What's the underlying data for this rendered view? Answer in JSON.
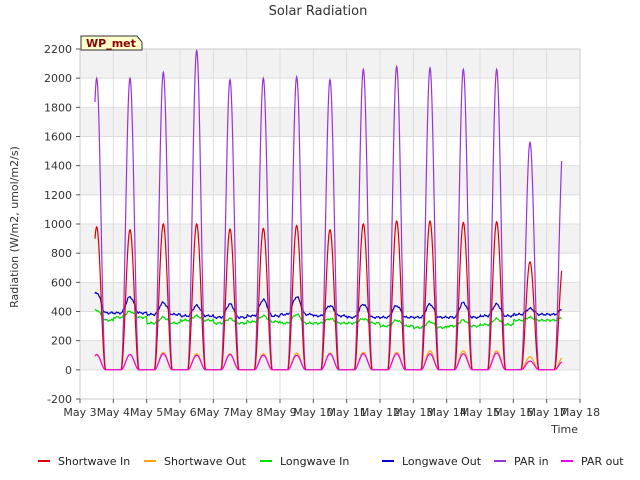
{
  "chart_data": {
    "type": "line",
    "title": "Solar Radiation",
    "xlabel": "Time",
    "ylabel": "Radiation (W/m2, umol/m2/s)",
    "station_badge": "WP_met",
    "ylim": [
      -200,
      2200
    ],
    "yticks": [
      -200,
      0,
      200,
      400,
      600,
      800,
      1000,
      1200,
      1400,
      1600,
      1800,
      2000,
      2200
    ],
    "xlim": [
      3,
      18
    ],
    "xticks": [
      3,
      4,
      5,
      6,
      7,
      8,
      9,
      10,
      11,
      12,
      13,
      14,
      15,
      16,
      17,
      18
    ],
    "xtick_labels": [
      "May 3",
      "May 4",
      "May 5",
      "May 6",
      "May 7",
      "May 8",
      "May 9",
      "May 10",
      "May 11",
      "May 12",
      "May 13",
      "May 14",
      "May 15",
      "May 16",
      "May 17",
      "May 18"
    ],
    "days": [
      3.5,
      4.5,
      5.5,
      6.5,
      7.5,
      8.5,
      9.5,
      10.5,
      11.5,
      12.5,
      13.5,
      14.5,
      15.5,
      16.5,
      17.5
    ],
    "grid": true,
    "legend_position": "bottom",
    "series": [
      {
        "name": "Shortwave In",
        "color": "#dd0000",
        "daily_peak": [
          980,
          960,
          1000,
          1000,
          965,
          970,
          990,
          960,
          1000,
          1020,
          1020,
          1010,
          1015,
          740
        ]
      },
      {
        "name": "Shortwave Out",
        "color": "#ffa500",
        "daily_peak": [
          100,
          105,
          120,
          110,
          110,
          110,
          115,
          115,
          120,
          120,
          130,
          130,
          130,
          90
        ]
      },
      {
        "name": "Longwave In",
        "color": "#00dd00",
        "night_level": [
          340,
          360,
          320,
          340,
          320,
          330,
          320,
          320,
          320,
          300,
          290,
          300,
          310,
          340
        ],
        "day_peak": [
          410,
          400,
          360,
          370,
          350,
          370,
          380,
          350,
          350,
          340,
          330,
          340,
          350,
          360
        ]
      },
      {
        "name": "Longwave Out",
        "color": "#0000cc",
        "night_level": [
          390,
          390,
          380,
          370,
          360,
          370,
          380,
          370,
          360,
          360,
          360,
          360,
          370,
          380
        ],
        "day_peak": [
          530,
          500,
          460,
          440,
          450,
          480,
          500,
          440,
          450,
          440,
          450,
          460,
          450,
          420
        ]
      },
      {
        "name": "PAR in",
        "color": "#9933dd",
        "daily_peak": [
          2000,
          2000,
          2040,
          2190,
          1990,
          2000,
          2010,
          1990,
          2060,
          2080,
          2070,
          2060,
          2060,
          1560
        ]
      },
      {
        "name": "PAR out",
        "color": "#ee00ee",
        "daily_peak": [
          105,
          105,
          110,
          100,
          105,
          100,
          100,
          110,
          110,
          110,
          110,
          110,
          115,
          60
        ]
      }
    ]
  }
}
